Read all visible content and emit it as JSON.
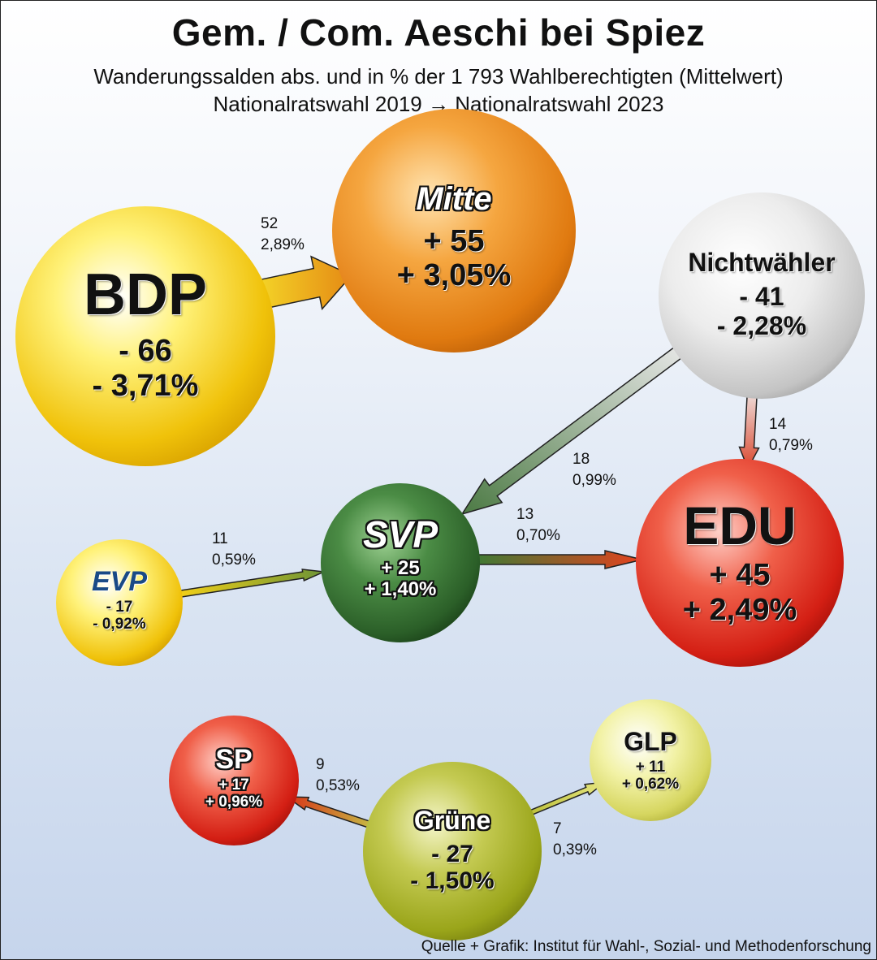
{
  "title": "Gem. / Com. Aeschi bei Spiez",
  "subtitle_line1": "Wanderungssalden abs. und in % der 1 793 Wahlberechtigten (Mittelwert)",
  "subtitle_line2": "Nationalratswahl 2019 → Nationalratswahl 2023",
  "source": "Quelle + Grafik: Institut für Wahl-, Sozial- und Methodenforschung",
  "nodes": {
    "bdp": {
      "name": "BDP",
      "abs": "- 66",
      "pct": "- 3,71%",
      "color": "#f2c40c"
    },
    "mitte": {
      "name": "Mitte",
      "abs": "+ 55",
      "pct": "+ 3,05%",
      "color": "#e07a10"
    },
    "nichtwaehler": {
      "name": "Nichtwähler",
      "abs": "- 41",
      "pct": "- 2,28%",
      "color": "#c8c8c8"
    },
    "svp": {
      "name": "SVP",
      "abs": "+ 25",
      "pct": "+ 1,40%",
      "color": "#2f6e2c"
    },
    "edu": {
      "name": "EDU",
      "abs": "+ 45",
      "pct": "+ 2,49%",
      "color": "#d81e14"
    },
    "evp": {
      "name": "EVP",
      "abs": "- 17",
      "pct": "- 0,92%",
      "color": "#f2c40c"
    },
    "sp": {
      "name": "SP",
      "abs": "+ 17",
      "pct": "+ 0,96%",
      "color": "#d81e14"
    },
    "gruene": {
      "name": "Grüne",
      "abs": "- 27",
      "pct": "- 1,50%",
      "color": "#9aa51a"
    },
    "glp": {
      "name": "GLP",
      "abs": "+ 11",
      "pct": "+ 0,62%",
      "color": "#cfcf50"
    }
  },
  "flows": [
    {
      "from": "BDP",
      "to": "Mitte",
      "abs": "52",
      "pct": "2,89%"
    },
    {
      "from": "Nichtwähler",
      "to": "SVP",
      "abs": "18",
      "pct": "0,99%"
    },
    {
      "from": "Nichtwähler",
      "to": "EDU",
      "abs": "14",
      "pct": "0,79%"
    },
    {
      "from": "SVP",
      "to": "EDU",
      "abs": "13",
      "pct": "0,70%"
    },
    {
      "from": "EVP",
      "to": "SVP",
      "abs": "11",
      "pct": "0,59%"
    },
    {
      "from": "Grüne",
      "to": "SP",
      "abs": "9",
      "pct": "0,53%"
    },
    {
      "from": "Grüne",
      "to": "GLP",
      "abs": "7",
      "pct": "0,39%"
    }
  ]
}
